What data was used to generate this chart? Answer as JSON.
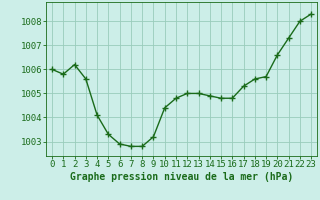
{
  "x": [
    0,
    1,
    2,
    3,
    4,
    5,
    6,
    7,
    8,
    9,
    10,
    11,
    12,
    13,
    14,
    15,
    16,
    17,
    18,
    19,
    20,
    21,
    22,
    23
  ],
  "y": [
    1006.0,
    1005.8,
    1006.2,
    1005.6,
    1004.1,
    1003.3,
    1002.9,
    1002.8,
    1002.8,
    1003.2,
    1004.4,
    1004.8,
    1005.0,
    1005.0,
    1004.9,
    1004.8,
    1004.8,
    1005.3,
    1005.6,
    1005.7,
    1006.6,
    1007.3,
    1008.0,
    1008.3
  ],
  "line_color": "#1a6b1a",
  "marker": "+",
  "marker_size": 4,
  "marker_color": "#1a6b1a",
  "background_color": "#cceee8",
  "grid_color": "#99ccbb",
  "tick_color": "#1a6b1a",
  "xlabel": "Graphe pression niveau de la mer (hPa)",
  "xlabel_color": "#1a6b1a",
  "xlabel_fontsize": 7,
  "ylim": [
    1002.4,
    1008.8
  ],
  "yticks": [
    1003,
    1004,
    1005,
    1006,
    1007,
    1008
  ],
  "xtick_labels": [
    "0",
    "1",
    "2",
    "3",
    "4",
    "5",
    "6",
    "7",
    "8",
    "9",
    "10",
    "11",
    "12",
    "13",
    "14",
    "15",
    "16",
    "17",
    "18",
    "19",
    "20",
    "21",
    "22",
    "23"
  ],
  "tick_fontsize": 6.5,
  "spine_color": "#1a6b1a",
  "line_width": 1.0
}
